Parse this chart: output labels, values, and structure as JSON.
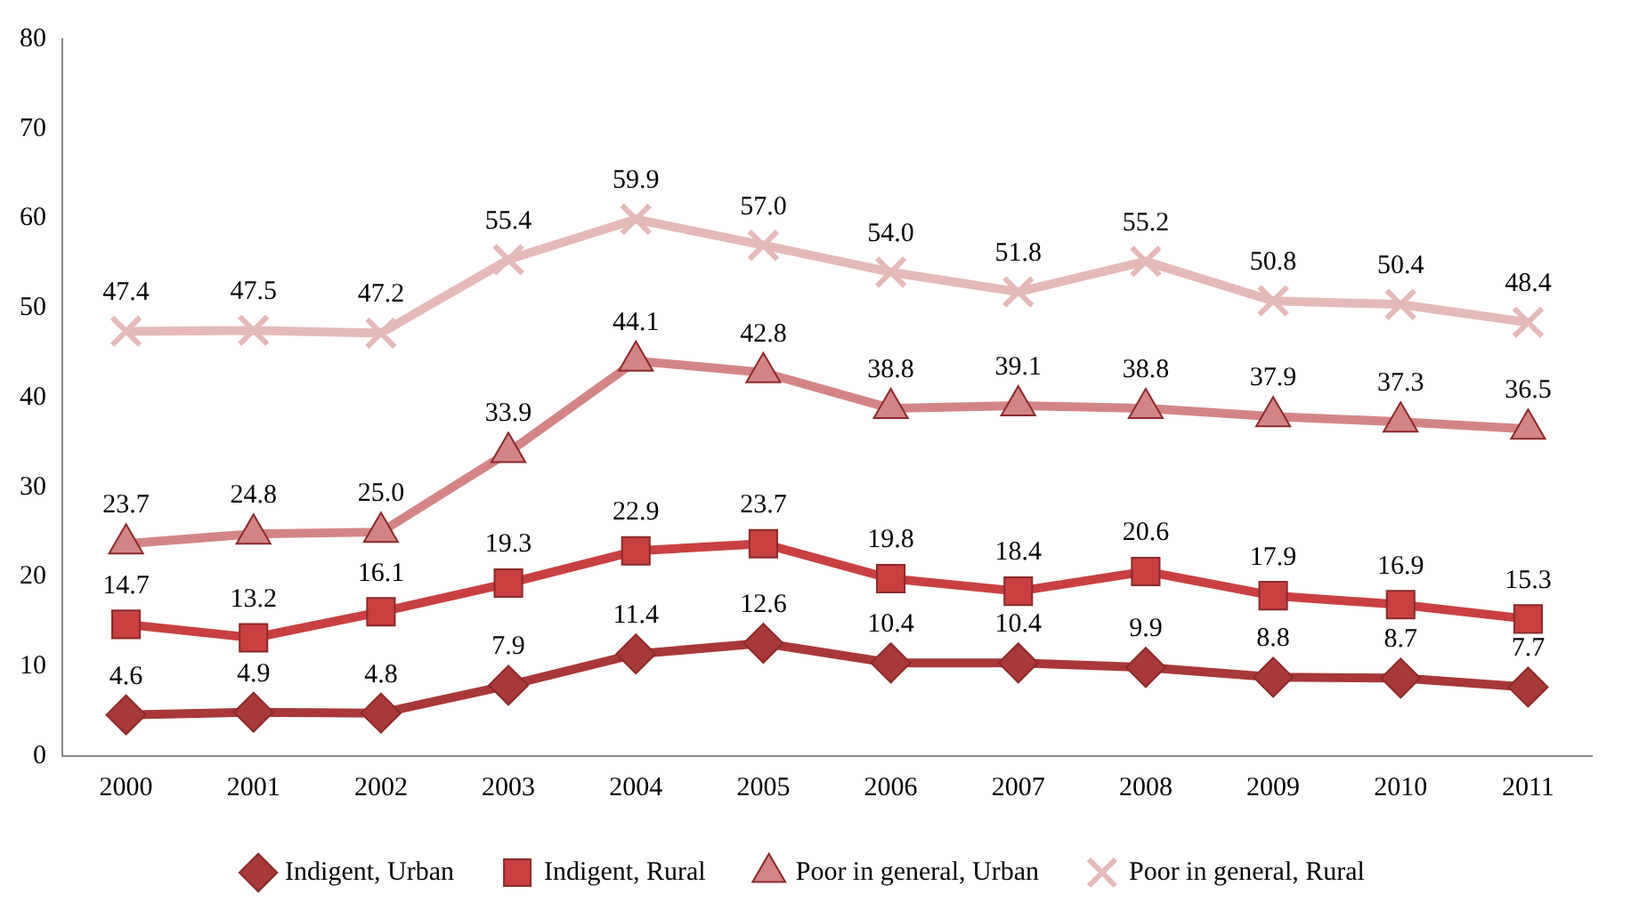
{
  "chart_data": {
    "type": "line",
    "categories": [
      "2000",
      "2001",
      "2002",
      "2003",
      "2004",
      "2005",
      "2006",
      "2007",
      "2008",
      "2009",
      "2010",
      "2011"
    ],
    "series": [
      {
        "name": "Indigent, Urban",
        "color": "#a93838",
        "marker": "diamond",
        "values": [
          4.6,
          4.9,
          4.8,
          7.9,
          11.4,
          12.6,
          10.4,
          10.4,
          9.9,
          8.8,
          8.7,
          7.7
        ],
        "value_labels": [
          "4.6",
          "4.9",
          "4.8",
          "7.9",
          "11.4",
          "12.6",
          "10.4",
          "10.4",
          "9.9",
          "8.8",
          "8.7",
          "7.7"
        ]
      },
      {
        "name": "Indigent, Rural",
        "color": "#c94040",
        "marker": "square",
        "values": [
          14.7,
          13.2,
          16.1,
          19.3,
          22.9,
          23.7,
          19.8,
          18.4,
          20.6,
          17.9,
          16.9,
          15.3
        ],
        "value_labels": [
          "14.7",
          "13.2",
          "16.1",
          "19.3",
          "22.9",
          "23.7",
          "19.8",
          "18.4",
          "20.6",
          "17.9",
          "16.9",
          "15.3"
        ]
      },
      {
        "name": "Poor in general, Urban",
        "color": "#d38585",
        "marker": "triangle",
        "values": [
          23.7,
          24.8,
          25,
          33.9,
          44.1,
          42.8,
          38.8,
          39.1,
          38.8,
          37.9,
          37.3,
          36.5
        ],
        "value_labels": [
          "23.7",
          "24.8",
          "25.0",
          "33.9",
          "44.1",
          "42.8",
          "38.8",
          "39.1",
          "38.8",
          "37.9",
          "37.3",
          "36.5"
        ]
      },
      {
        "name": "Poor in general, Rural",
        "color": "#e6b9b9",
        "marker": "cross",
        "values": [
          47.4,
          47.5,
          47.2,
          55.4,
          59.9,
          57,
          54,
          51.8,
          55.2,
          50.8,
          50.4,
          48.4
        ],
        "value_labels": [
          "47.4",
          "47.5",
          "47.2",
          "55.4",
          "59.9",
          "57.0",
          "54.0",
          "51.8",
          "55.2",
          "50.8",
          "50.4",
          "48.4"
        ]
      }
    ],
    "ylim": [
      0,
      80
    ],
    "yticks": [
      0,
      10,
      20,
      30,
      40,
      50,
      60,
      70,
      80
    ],
    "grid": false,
    "legend": "bottom"
  }
}
